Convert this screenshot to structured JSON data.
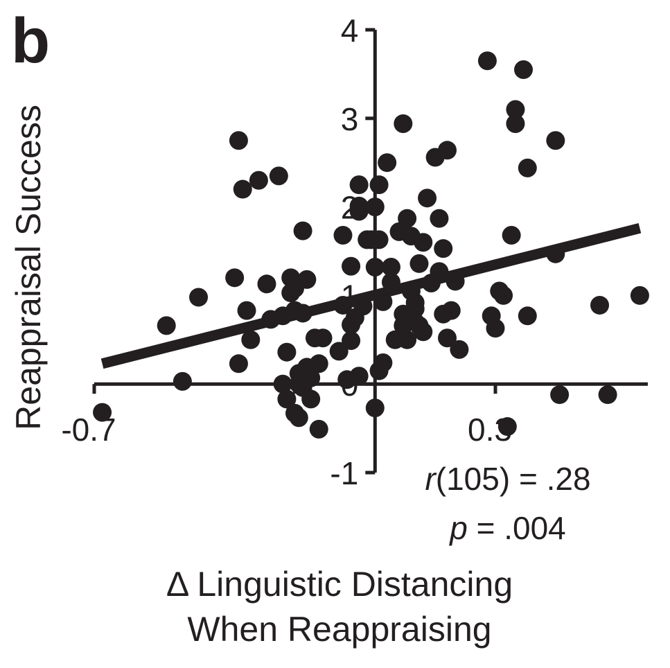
{
  "panel_label": "b",
  "colors": {
    "ink": "#231f20",
    "background": "#ffffff"
  },
  "chart_data": {
    "type": "scatter",
    "ylabel": "Reappraisal Success",
    "xlabel_lines": [
      "Δ Linguistic Distancing",
      "When Reappraising"
    ],
    "xlim": [
      -0.7,
      0.68
    ],
    "ylim": [
      -1,
      4
    ],
    "x_ticks": [
      -0.7,
      -0.2,
      0.3
    ],
    "x_tick_labels": [
      "-0.7",
      "0.3"
    ],
    "y_ticks": [
      -1,
      0,
      1,
      2,
      3,
      4
    ],
    "y_tick_labels": [
      "-1",
      "0",
      "1",
      "2",
      "3",
      "4"
    ],
    "grid": false,
    "stats": {
      "r_symbol": "r",
      "r_rest": "(105) = .28",
      "p_symbol": "p",
      "p_rest": " = .004"
    },
    "fit_line": [
      [
        -0.68,
        0.23
      ],
      [
        0.66,
        1.76
      ]
    ],
    "points": [
      [
        -0.68,
        -0.32
      ],
      [
        -0.52,
        0.66
      ],
      [
        -0.48,
        0.03
      ],
      [
        -0.44,
        0.98
      ],
      [
        -0.35,
        1.2
      ],
      [
        -0.34,
        0.23
      ],
      [
        -0.34,
        2.75
      ],
      [
        -0.33,
        2.2
      ],
      [
        -0.32,
        0.83
      ],
      [
        -0.31,
        0.5
      ],
      [
        -0.29,
        2.3
      ],
      [
        -0.27,
        1.13
      ],
      [
        -0.26,
        0.73
      ],
      [
        -0.24,
        2.35
      ],
      [
        -0.23,
        0.77
      ],
      [
        -0.23,
        0.0
      ],
      [
        -0.22,
        -0.17
      ],
      [
        -0.22,
        0.36
      ],
      [
        -0.21,
        1.2
      ],
      [
        -0.21,
        1.03
      ],
      [
        -0.2,
        1.08
      ],
      [
        -0.2,
        0.83
      ],
      [
        -0.2,
        -0.33
      ],
      [
        -0.19,
        0.0
      ],
      [
        -0.19,
        0.12
      ],
      [
        -0.19,
        -0.38
      ],
      [
        -0.18,
        1.73
      ],
      [
        -0.18,
        0.8
      ],
      [
        -0.18,
        -0.04
      ],
      [
        -0.17,
        0.19
      ],
      [
        -0.17,
        1.18
      ],
      [
        -0.16,
        -0.17
      ],
      [
        -0.16,
        0.07
      ],
      [
        -0.15,
        0.52
      ],
      [
        -0.14,
        0.23
      ],
      [
        -0.14,
        -0.51
      ],
      [
        -0.13,
        0.52
      ],
      [
        -0.09,
        0.37
      ],
      [
        -0.08,
        0.89
      ],
      [
        -0.08,
        1.68
      ],
      [
        -0.07,
        0.05
      ],
      [
        -0.06,
        1.33
      ],
      [
        -0.06,
        0.67
      ],
      [
        -0.06,
        0.49
      ],
      [
        -0.05,
        0.75
      ],
      [
        -0.04,
        0.09
      ],
      [
        -0.04,
        1.95
      ],
      [
        -0.04,
        2.01
      ],
      [
        -0.04,
        2.25
      ],
      [
        -0.03,
        0.88
      ],
      [
        -0.02,
        1.63
      ],
      [
        -0.01,
        1.63
      ],
      [
        0.0,
        1.32
      ],
      [
        0.0,
        2.0
      ],
      [
        0.0,
        -0.27
      ],
      [
        0.01,
        1.63
      ],
      [
        0.01,
        2.25
      ],
      [
        0.01,
        0.15
      ],
      [
        0.02,
        0.93
      ],
      [
        0.02,
        0.24
      ],
      [
        0.03,
        2.5
      ],
      [
        0.04,
        1.15
      ],
      [
        0.04,
        1.32
      ],
      [
        0.05,
        0.5
      ],
      [
        0.06,
        1.72
      ],
      [
        0.07,
        0.66
      ],
      [
        0.07,
        0.79
      ],
      [
        0.07,
        2.94
      ],
      [
        0.08,
        1.87
      ],
      [
        0.08,
        0.5
      ],
      [
        0.09,
        1.67
      ],
      [
        0.09,
        1.05
      ],
      [
        0.1,
        0.85
      ],
      [
        0.1,
        0.7
      ],
      [
        0.1,
        0.92
      ],
      [
        0.11,
        1.36
      ],
      [
        0.11,
        0.66
      ],
      [
        0.12,
        1.6
      ],
      [
        0.12,
        0.59
      ],
      [
        0.13,
        2.1
      ],
      [
        0.14,
        1.14
      ],
      [
        0.15,
        2.56
      ],
      [
        0.16,
        1.87
      ],
      [
        0.16,
        1.27
      ],
      [
        0.17,
        1.53
      ],
      [
        0.17,
        0.79
      ],
      [
        0.18,
        0.52
      ],
      [
        0.18,
        2.64
      ],
      [
        0.19,
        0.83
      ],
      [
        0.2,
        1.16
      ],
      [
        0.21,
        0.39
      ],
      [
        0.28,
        3.65
      ],
      [
        0.29,
        0.77
      ],
      [
        0.3,
        0.63
      ],
      [
        0.31,
        1.05
      ],
      [
        0.32,
        1.0
      ],
      [
        0.33,
        -0.48
      ],
      [
        0.34,
        1.68
      ],
      [
        0.35,
        3.1
      ],
      [
        0.35,
        2.94
      ],
      [
        0.37,
        3.55
      ],
      [
        0.38,
        2.44
      ],
      [
        0.38,
        0.77
      ],
      [
        0.45,
        2.75
      ],
      [
        0.45,
        1.47
      ],
      [
        0.46,
        -0.12
      ],
      [
        0.56,
        0.89
      ],
      [
        0.58,
        -0.12
      ],
      [
        0.66,
        1.0
      ]
    ]
  }
}
